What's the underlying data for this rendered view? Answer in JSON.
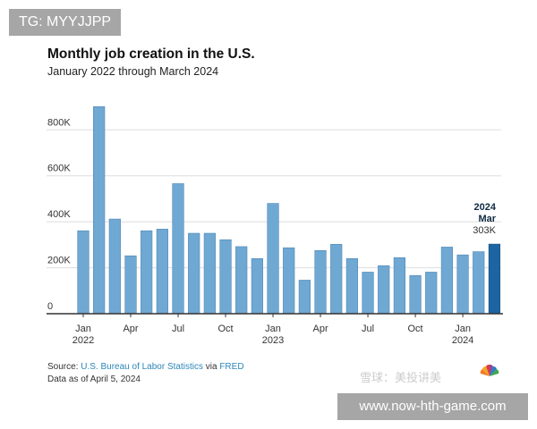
{
  "watermark_tg": "TG: MYYJJPP",
  "watermark_site": "www.now-hth-game.com",
  "watermark_xueqiu": "雪球：美投讲美",
  "colors": {
    "bar": "#6fa8d3",
    "bar_border": "#4f88b5",
    "highlight": "#1d64a2",
    "grid": "#dddddd",
    "link": "#2b87b8"
  },
  "footer": {
    "source_prefix": "Source: ",
    "source_link1": "U.S. Bureau of Labor Statistics",
    "source_via": " via ",
    "source_link2": "FRED",
    "data_as_of": "Data as of April 5, 2024"
  },
  "chart_data": {
    "type": "bar",
    "title": "Monthly job creation in the U.S.",
    "subtitle": "January 2022 through March 2024",
    "xlabel": "",
    "ylabel": "",
    "ylim": [
      0,
      900000
    ],
    "grid": true,
    "yticks": [
      {
        "v": 0,
        "label": "0"
      },
      {
        "v": 200000,
        "label": "200K"
      },
      {
        "v": 400000,
        "label": "400K"
      },
      {
        "v": 600000,
        "label": "600K"
      },
      {
        "v": 800000,
        "label": "800K"
      }
    ],
    "categories": [
      "Jan 2022",
      "Feb 2022",
      "Mar 2022",
      "Apr 2022",
      "May 2022",
      "Jun 2022",
      "Jul 2022",
      "Aug 2022",
      "Sep 2022",
      "Oct 2022",
      "Nov 2022",
      "Dec 2022",
      "Jan 2023",
      "Feb 2023",
      "Mar 2023",
      "Apr 2023",
      "May 2023",
      "Jun 2023",
      "Jul 2023",
      "Aug 2023",
      "Sep 2023",
      "Oct 2023",
      "Nov 2023",
      "Dec 2023",
      "Jan 2024",
      "Feb 2024",
      "Mar 2024"
    ],
    "values": [
      361000,
      901000,
      412000,
      252000,
      361000,
      368000,
      566000,
      350000,
      350000,
      322000,
      292000,
      240000,
      480000,
      287000,
      146000,
      275000,
      302000,
      240000,
      181000,
      209000,
      244000,
      166000,
      181000,
      290000,
      256000,
      270000,
      303000
    ],
    "xticks": [
      {
        "i": 0,
        "label": "Jan",
        "year": "2022"
      },
      {
        "i": 3,
        "label": "Apr"
      },
      {
        "i": 6,
        "label": "Jul"
      },
      {
        "i": 9,
        "label": "Oct"
      },
      {
        "i": 12,
        "label": "Jan",
        "year": "2023"
      },
      {
        "i": 15,
        "label": "Apr"
      },
      {
        "i": 18,
        "label": "Jul"
      },
      {
        "i": 21,
        "label": "Oct"
      },
      {
        "i": 24,
        "label": "Jan",
        "year": "2024"
      }
    ],
    "highlight_index": 26,
    "annotation": {
      "year": "2024",
      "month": "Mar",
      "value": "303K"
    }
  }
}
